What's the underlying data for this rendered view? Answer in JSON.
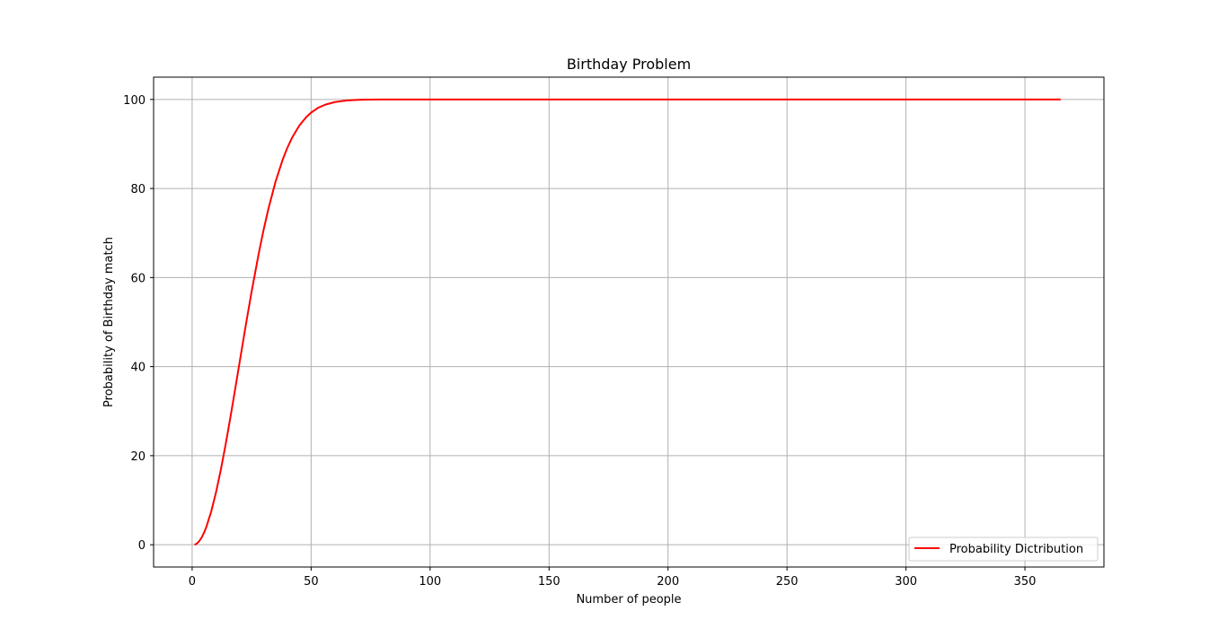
{
  "chart_data": {
    "type": "line",
    "title": "Birthday Problem",
    "xlabel": "Number of people",
    "ylabel": "Probability of Birthday match",
    "xlim": [
      -16.2,
      383.2
    ],
    "ylim": [
      -5,
      105
    ],
    "xticks": [
      0,
      50,
      100,
      150,
      200,
      250,
      300,
      350
    ],
    "yticks": [
      0,
      20,
      40,
      60,
      80,
      100
    ],
    "grid": true,
    "legend_position": "lower-right",
    "series": [
      {
        "name": "Probability Dictribution",
        "color": "#ff0000",
        "x": [
          1,
          2,
          3,
          4,
          5,
          6,
          8,
          10,
          12,
          14,
          16,
          18,
          20,
          22,
          23,
          25,
          28,
          30,
          32,
          35,
          38,
          40,
          42,
          45,
          48,
          50,
          53,
          56,
          60,
          65,
          70,
          75,
          80,
          90,
          100,
          150,
          200,
          250,
          300,
          365
        ],
        "y": [
          0.0,
          0.27,
          0.82,
          1.64,
          2.71,
          4.05,
          7.43,
          11.69,
          16.7,
          22.31,
          28.36,
          34.69,
          41.14,
          47.57,
          50.73,
          56.87,
          65.45,
          70.63,
          75.33,
          81.44,
          86.41,
          89.12,
          91.4,
          94.1,
          96.06,
          97.04,
          98.14,
          98.83,
          99.41,
          99.77,
          99.92,
          99.97,
          99.99,
          100.0,
          100.0,
          100.0,
          100.0,
          100.0,
          100.0,
          100.0
        ]
      }
    ]
  }
}
